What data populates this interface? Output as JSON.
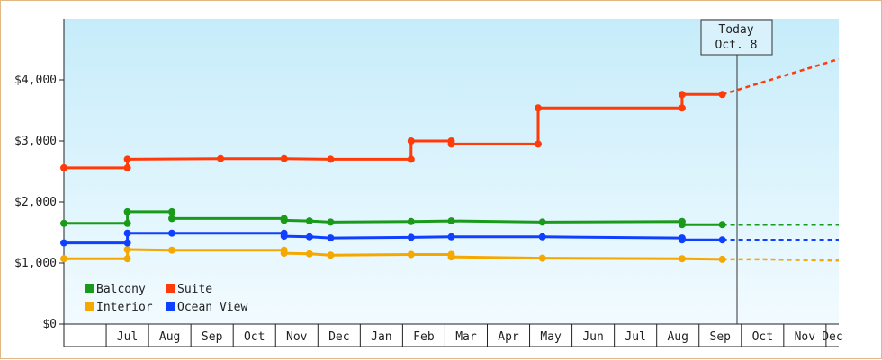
{
  "chart_data": {
    "type": "line",
    "title": "",
    "xlabel": "",
    "ylabel": "",
    "ylim": [
      0,
      5000
    ],
    "y_ticks": [
      "$0",
      "$1,000",
      "$2,000",
      "$3,000",
      "$4,000"
    ],
    "y_tick_values": [
      0,
      1000,
      2000,
      3000,
      4000
    ],
    "x_ticks": [
      "Jul",
      "Aug",
      "Sep",
      "Oct",
      "Nov",
      "Dec",
      "Jan",
      "Feb",
      "Mar",
      "Apr",
      "May",
      "Jun",
      "Jul",
      "Aug",
      "Sep",
      "Oct",
      "Nov",
      "Dec"
    ],
    "x_tick_index": [
      1,
      2,
      3,
      4,
      5,
      6,
      7,
      8,
      9,
      10,
      11,
      12,
      13,
      14,
      15,
      16,
      17,
      18
    ],
    "x_range_months": [
      0,
      18.3
    ],
    "grid": false,
    "legend_position": "bottom-left",
    "today": {
      "line1": "Today",
      "line2": "Oct. 8",
      "month_index": 15.55
    },
    "series": [
      {
        "name": "Balcony",
        "color": "#1a9a1a",
        "points": [
          [
            0,
            1650
          ],
          [
            1.5,
            1650
          ],
          [
            1.5,
            1840
          ],
          [
            2.55,
            1840
          ],
          [
            2.55,
            1730
          ],
          [
            5.2,
            1730
          ],
          [
            5.2,
            1700
          ],
          [
            5.8,
            1690
          ],
          [
            6.3,
            1670
          ],
          [
            8.2,
            1680
          ],
          [
            9.15,
            1690
          ],
          [
            11.3,
            1670
          ],
          [
            14.6,
            1680
          ],
          [
            14.6,
            1630
          ],
          [
            15.55,
            1630
          ]
        ],
        "forecast": [
          [
            15.55,
            1630
          ],
          [
            18.3,
            1630
          ]
        ]
      },
      {
        "name": "Suite",
        "color": "#ff3b0a",
        "points": [
          [
            0,
            2560
          ],
          [
            1.5,
            2560
          ],
          [
            1.5,
            2700
          ],
          [
            3.7,
            2710
          ],
          [
            5.2,
            2710
          ],
          [
            6.3,
            2700
          ],
          [
            8.2,
            2700
          ],
          [
            8.2,
            3000
          ],
          [
            9.15,
            3000
          ],
          [
            9.15,
            2950
          ],
          [
            11.2,
            2950
          ],
          [
            11.2,
            3540
          ],
          [
            14.6,
            3540
          ],
          [
            14.6,
            3760
          ],
          [
            15.55,
            3760
          ]
        ],
        "forecast": [
          [
            15.55,
            3760
          ],
          [
            18.3,
            4340
          ]
        ]
      },
      {
        "name": "Interior",
        "color": "#f5a800",
        "points": [
          [
            0,
            1070
          ],
          [
            1.5,
            1070
          ],
          [
            1.5,
            1220
          ],
          [
            2.55,
            1210
          ],
          [
            5.2,
            1210
          ],
          [
            5.2,
            1160
          ],
          [
            5.8,
            1150
          ],
          [
            6.3,
            1130
          ],
          [
            8.2,
            1140
          ],
          [
            9.15,
            1140
          ],
          [
            9.15,
            1100
          ],
          [
            11.3,
            1080
          ],
          [
            14.6,
            1070
          ],
          [
            15.55,
            1060
          ]
        ],
        "forecast": [
          [
            15.55,
            1060
          ],
          [
            16.5,
            1060
          ],
          [
            18.3,
            1040
          ]
        ]
      },
      {
        "name": "Ocean View",
        "color": "#1040ff",
        "points": [
          [
            0,
            1330
          ],
          [
            1.5,
            1330
          ],
          [
            1.5,
            1490
          ],
          [
            2.55,
            1490
          ],
          [
            5.2,
            1490
          ],
          [
            5.2,
            1440
          ],
          [
            5.8,
            1430
          ],
          [
            6.3,
            1410
          ],
          [
            8.2,
            1420
          ],
          [
            9.15,
            1430
          ],
          [
            11.3,
            1430
          ],
          [
            14.6,
            1410
          ],
          [
            14.6,
            1380
          ],
          [
            15.55,
            1380
          ]
        ],
        "forecast": [
          [
            15.55,
            1380
          ],
          [
            18.3,
            1380
          ]
        ]
      }
    ],
    "legend_items": [
      {
        "label": "Balcony",
        "color": "#1a9a1a"
      },
      {
        "label": "Suite",
        "color": "#ff3b0a"
      },
      {
        "label": "Interior",
        "color": "#f5a800"
      },
      {
        "label": "Ocean View",
        "color": "#1040ff"
      }
    ]
  }
}
